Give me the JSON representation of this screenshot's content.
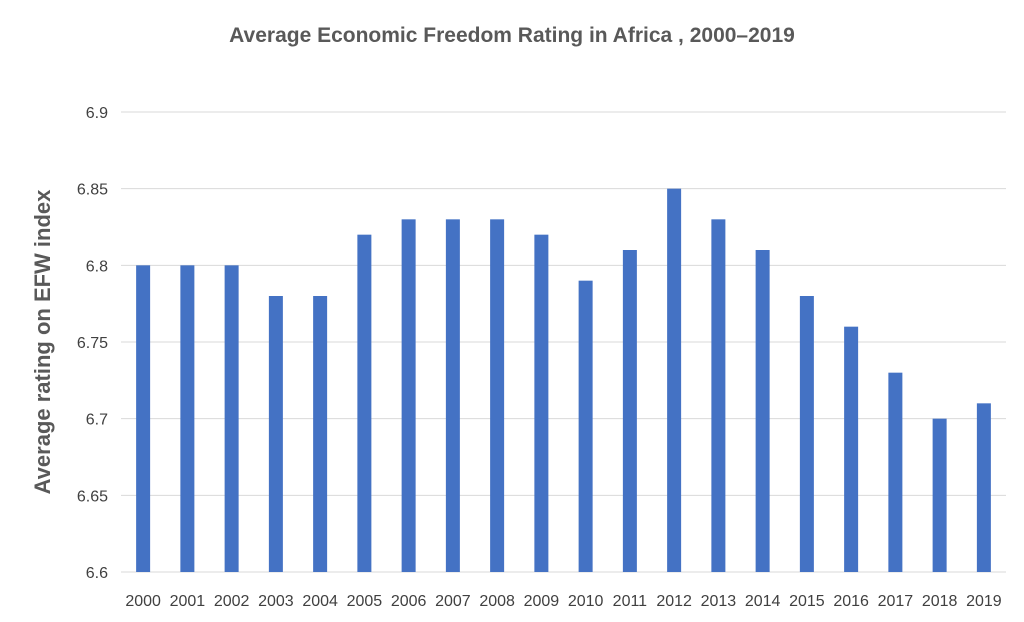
{
  "chart_data": {
    "type": "bar",
    "title": "Average Economic Freedom Rating in Africa , 2000–2019",
    "xlabel": "",
    "ylabel": "Average rating on EFW index",
    "categories": [
      "2000",
      "2001",
      "2002",
      "2003",
      "2004",
      "2005",
      "2006",
      "2007",
      "2008",
      "2009",
      "2010",
      "2011",
      "2012",
      "2013",
      "2014",
      "2015",
      "2016",
      "2017",
      "2018",
      "2019"
    ],
    "values": [
      6.8,
      6.8,
      6.8,
      6.78,
      6.78,
      6.82,
      6.83,
      6.83,
      6.83,
      6.82,
      6.79,
      6.81,
      6.85,
      6.83,
      6.81,
      6.78,
      6.76,
      6.73,
      6.7,
      6.71
    ],
    "ylim": [
      6.6,
      6.9
    ],
    "yticks": [
      "6.6",
      "6.65",
      "6.7",
      "6.75",
      "6.8",
      "6.85",
      "6.9"
    ],
    "grid": true,
    "legend": "none",
    "bar_color": "#4472c4",
    "grid_color": "#d9d9d9"
  }
}
